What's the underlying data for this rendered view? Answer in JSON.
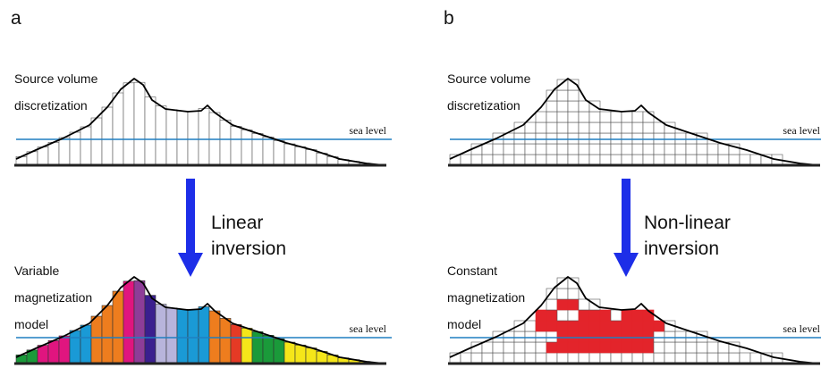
{
  "panels": [
    {
      "label": "a",
      "top": {
        "caption": [
          "Source volume",
          "discretization"
        ],
        "sea_level": "sea level"
      },
      "arrow": [
        "Linear",
        "inversion"
      ],
      "bottom": {
        "caption": [
          "Variable",
          "magnetization",
          "model"
        ],
        "sea_level": "sea level"
      }
    },
    {
      "label": "b",
      "top": {
        "caption": [
          "Source volume",
          "discretization"
        ],
        "sea_level": "sea level"
      },
      "arrow": [
        "Non-linear",
        "inversion"
      ],
      "bottom": {
        "caption": [
          "Constant",
          "magnetization",
          "model"
        ],
        "sea_level": "sea level"
      }
    }
  ]
}
